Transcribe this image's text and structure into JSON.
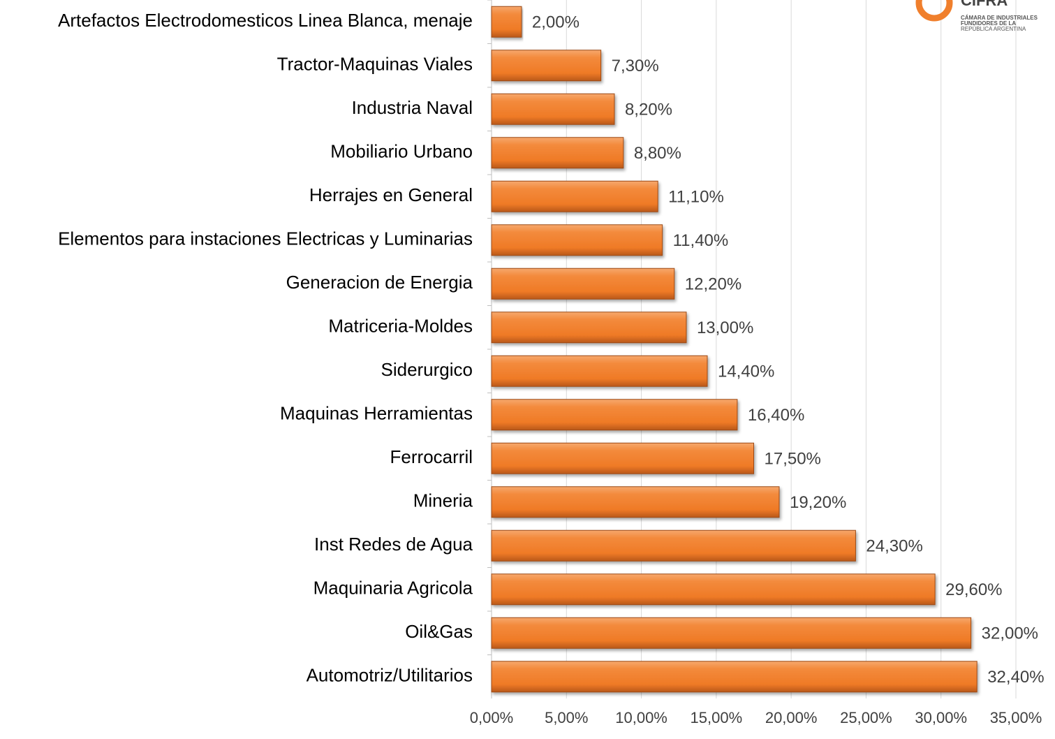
{
  "chart_data": {
    "type": "hbar",
    "categories": [
      "Artefactos Electrodomesticos Linea Blanca, menaje",
      "Tractor-Maquinas Viales",
      "Industria Naval",
      "Mobiliario Urbano",
      "Herrajes en General",
      "Elementos para instaciones Electricas y Luminarias",
      "Generacion de Energia",
      "Matriceria-Moldes",
      "Siderurgico",
      "Maquinas Herramientas",
      "Ferrocarril",
      "Mineria",
      "Inst Redes de Agua",
      "Maquinaria Agricola",
      "Oil&Gas",
      "Automotriz/Utilitarios"
    ],
    "values": [
      2.0,
      7.3,
      8.2,
      8.8,
      11.1,
      11.4,
      12.2,
      13.0,
      14.4,
      16.4,
      17.5,
      19.2,
      24.3,
      29.6,
      32.0,
      32.4
    ],
    "value_labels": [
      "2,00%",
      "7,30%",
      "8,20%",
      "8,80%",
      "11,10%",
      "11,40%",
      "12,20%",
      "13,00%",
      "14,40%",
      "16,40%",
      "17,50%",
      "19,20%",
      "24,30%",
      "29,60%",
      "32,00%",
      "32,40%"
    ],
    "color": "#f07f2c",
    "xlim": [
      0,
      35
    ],
    "xticks": [
      {
        "value": 0,
        "label": "0,00%"
      },
      {
        "value": 5,
        "label": "5,00%"
      },
      {
        "value": 10,
        "label": "10,00%"
      },
      {
        "value": 15,
        "label": "15,00%"
      },
      {
        "value": 20,
        "label": "20,00%"
      },
      {
        "value": 25,
        "label": "25,00%"
      },
      {
        "value": 30,
        "label": "30,00%"
      },
      {
        "value": 35,
        "label": "35,00%"
      }
    ],
    "grid": true
  },
  "logo": {
    "name": "CIFRA",
    "lines": [
      "CÁMARA DE INDUSTRIALES",
      "FUNDIDORES DE LA",
      "REPÚBLICA ARGENTINA"
    ]
  }
}
